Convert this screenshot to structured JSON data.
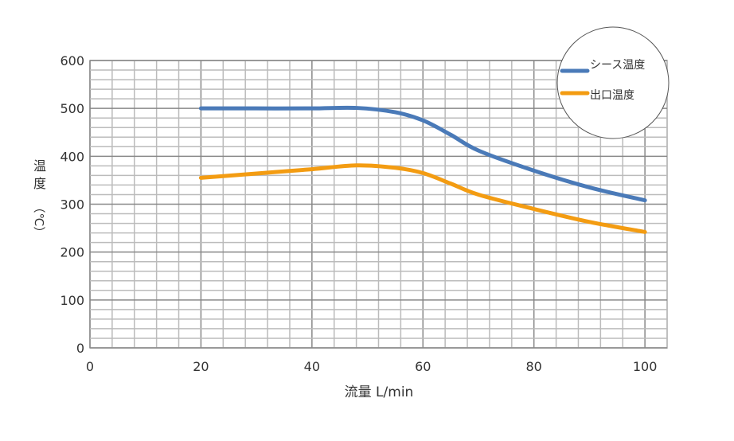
{
  "chart_data": {
    "type": "line",
    "title": "",
    "xlabel": "流量 L/min",
    "ylabel_chars": [
      "温",
      "度",
      "（℃）"
    ],
    "xlim": [
      0,
      104
    ],
    "ylim": [
      0,
      600
    ],
    "x_ticks": [
      0,
      20,
      40,
      60,
      80,
      100
    ],
    "y_ticks": [
      0,
      100,
      200,
      300,
      400,
      500,
      600
    ],
    "grid": true,
    "legend_position": "top-right",
    "series": [
      {
        "name": "シース温度",
        "color": "#4a7ab8",
        "points": [
          [
            20,
            500
          ],
          [
            30,
            500
          ],
          [
            40,
            500
          ],
          [
            48,
            501
          ],
          [
            55,
            492
          ],
          [
            60,
            475
          ],
          [
            65,
            445
          ],
          [
            70,
            412
          ],
          [
            80,
            370
          ],
          [
            90,
            335
          ],
          [
            100,
            308
          ]
        ]
      },
      {
        "name": "出口温度",
        "color": "#f39c12",
        "points": [
          [
            20,
            355
          ],
          [
            30,
            364
          ],
          [
            40,
            373
          ],
          [
            48,
            381
          ],
          [
            55,
            376
          ],
          [
            60,
            365
          ],
          [
            65,
            343
          ],
          [
            70,
            320
          ],
          [
            80,
            290
          ],
          [
            90,
            263
          ],
          [
            100,
            242
          ]
        ]
      }
    ]
  }
}
